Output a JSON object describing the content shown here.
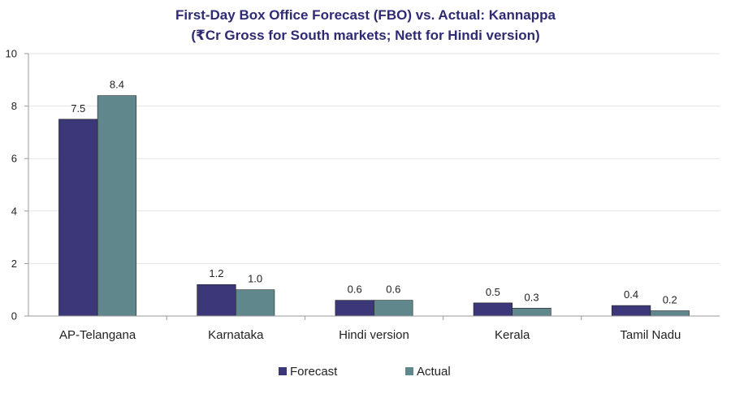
{
  "chart_data": {
    "type": "bar",
    "title": "First-Day Box Office Forecast (FBO) vs. Actual: Kannappa",
    "subtitle": "(₹Cr Gross for South markets; Nett for Hindi version)",
    "xlabel": "",
    "ylabel": "",
    "ylim": [
      0,
      10
    ],
    "yticks": [
      0,
      2,
      4,
      6,
      8,
      10
    ],
    "grid": true,
    "legend_position": "bottom",
    "categories": [
      "AP-Telangana",
      "Karnataka",
      "Hindi version",
      "Kerala",
      "Tamil Nadu"
    ],
    "series": [
      {
        "name": "Forecast",
        "color": "#3b3779",
        "values": [
          7.5,
          1.2,
          0.6,
          0.5,
          0.4
        ],
        "labels": [
          "7.5",
          "1.2",
          "0.6",
          "0.5",
          "0.4"
        ]
      },
      {
        "name": "Actual",
        "color": "#5f878c",
        "values": [
          8.4,
          1.0,
          0.6,
          0.3,
          0.2
        ],
        "labels": [
          "8.4",
          "1.0",
          "0.6",
          "0.3",
          "0.2"
        ]
      }
    ]
  }
}
